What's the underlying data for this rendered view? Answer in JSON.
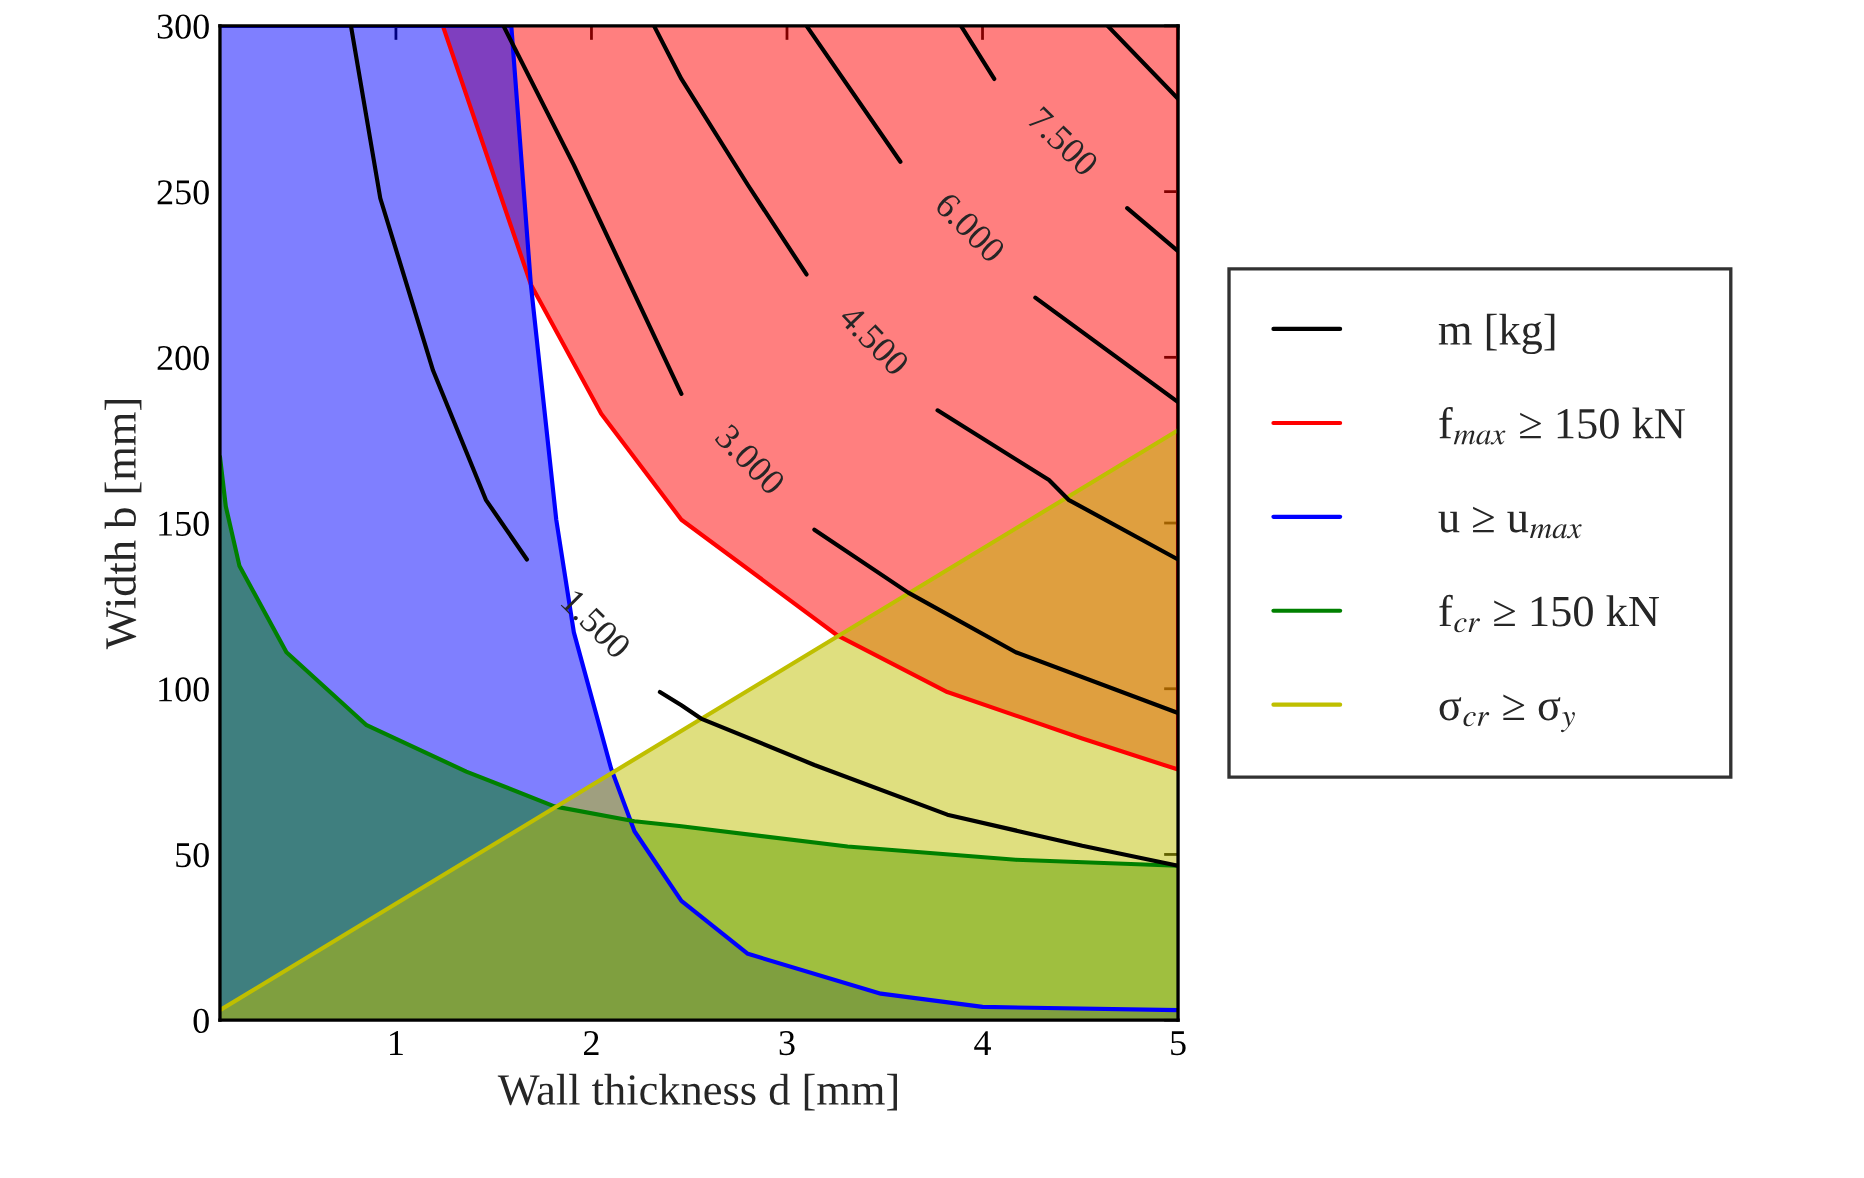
{
  "chart_data": {
    "type": "area",
    "xlabel": "Wall thickness d [mm]",
    "ylabel": "Width b [mm]",
    "xlim": [
      0.1,
      5
    ],
    "ylim": [
      0,
      300
    ],
    "xticks": [
      1,
      2,
      3,
      4,
      5
    ],
    "yticks": [
      0,
      50,
      100,
      150,
      200,
      250,
      300
    ],
    "grid": false,
    "legend": "right",
    "series": [
      {
        "type": "line",
        "name": "m [kg]",
        "color": "#000000",
        "x": [
          0.77,
          0.92,
          1.19,
          1.46,
          1.53,
          1.67,
          1.87,
          2.35,
          2.46,
          2.56,
          3.14,
          3.82,
          4.51,
          5.0
        ],
        "values": [
          300,
          248,
          196,
          157,
          151,
          139,
          null,
          99,
          95,
          91,
          77,
          62,
          52.6,
          46.6
        ]
      },
      {
        "type": "line",
        "color": "#000000",
        "x": [
          1.55,
          1.91,
          2.46,
          2.56,
          3.14,
          3.62,
          4.17,
          5.0
        ],
        "values": [
          300,
          258,
          189,
          null,
          148,
          129,
          111,
          92.7
        ]
      },
      {
        "type": "line",
        "color": "#000000",
        "x": [
          2.32,
          2.46,
          2.8,
          3.1,
          3.29,
          3.77,
          4.34,
          4.44,
          5.0
        ],
        "values": [
          300,
          284,
          252,
          225,
          null,
          184,
          163,
          157,
          139
        ]
      },
      {
        "type": "line",
        "color": "#000000",
        "x": [
          3.1,
          3.58,
          3.82,
          4.27,
          5.0
        ],
        "values": [
          300,
          259,
          null,
          218,
          186.5
        ]
      },
      {
        "type": "line",
        "color": "#000000",
        "x": [
          3.89,
          4.06,
          4.28,
          4.74,
          5.0
        ],
        "values": [
          300,
          284,
          null,
          245,
          232
        ]
      },
      {
        "type": "line",
        "color": "#000000",
        "x": [
          4.64,
          5.0
        ],
        "values": [
          300,
          278
        ]
      },
      {
        "name": "f$_{max}$ ≥ 150 kN",
        "color": "#ff0000",
        "x": [
          1.24,
          1.69,
          2.05,
          2.46,
          3.26,
          3.82,
          4.51,
          5.0,
          5.0
        ],
        "values": [
          300,
          222,
          183,
          151,
          116,
          99,
          85,
          75.6,
          300
        ]
      },
      {
        "name": "u ≥ u$_{max}$",
        "color": "#0000ff",
        "x": [
          0.1,
          1.59,
          1.69,
          1.82,
          1.91,
          2.1,
          2.22,
          2.46,
          2.8,
          3.48,
          4.0,
          5.0
        ],
        "values": [
          300,
          300,
          222,
          151,
          117,
          76,
          57,
          36,
          20,
          8,
          4,
          3
        ]
      },
      {
        "name": "f$_{cr}$ ≥ 150 kN",
        "color": "#008000",
        "x": [
          0.1,
          0.13,
          0.2,
          0.44,
          0.85,
          1.36,
          1.81,
          2.22,
          2.46,
          3.31,
          4.17,
          5.0
        ],
        "values": [
          170,
          155,
          137,
          111,
          89,
          75,
          64.5,
          60,
          58.5,
          52.4,
          48.4,
          46.6
        ]
      },
      {
        "name": "σ$_{cr}$ ≥ σ$_{y}$",
        "color": "#bfbf00",
        "x": [
          0.1,
          5.0
        ],
        "values": [
          3,
          178
        ]
      }
    ],
    "annotations": [
      {
        "text": "1.500",
        "x": 1.67,
        "y": 139
      },
      {
        "text": "3.000",
        "x": 2.46,
        "y": 189
      },
      {
        "text": "4.500",
        "x": 3.1,
        "y": 225
      },
      {
        "text": "6.000",
        "x": 3.58,
        "y": 259
      },
      {
        "text": "7.500",
        "x": 4.06,
        "y": 284
      }
    ]
  }
}
